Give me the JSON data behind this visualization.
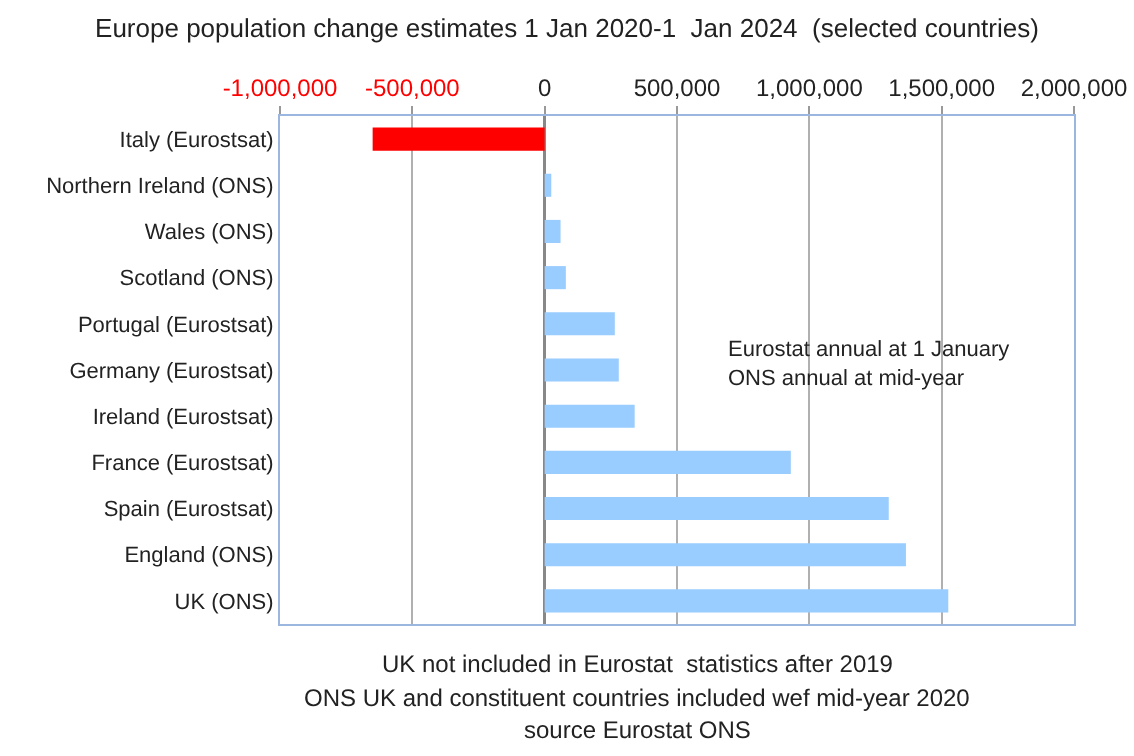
{
  "chart_data": {
    "type": "bar",
    "orientation": "horizontal",
    "title": "Europe population change estimates 1 Jan 2020-1  Jan 2024  (selected countries)",
    "categories": [
      "Italy (Eurostsat)",
      "Northern Ireland (ONS)",
      "Wales (ONS)",
      "Scotland (ONS)",
      "Portugal (Eurostsat)",
      "Germany (Eurostsat)",
      "Ireland (Eurostsat)",
      "France (Eurostsat)",
      "Spain (Eurostsat)",
      "England (ONS)",
      "UK (ONS)"
    ],
    "values": [
      -650000,
      25000,
      60000,
      80000,
      265000,
      280000,
      340000,
      930000,
      1300000,
      1365000,
      1525000
    ],
    "colors": [
      "#ff0000",
      "#99ccff",
      "#99ccff",
      "#99ccff",
      "#99ccff",
      "#99ccff",
      "#99ccff",
      "#99ccff",
      "#99ccff",
      "#99ccff",
      "#99ccff"
    ],
    "xlim": [
      -1000000,
      2000000
    ],
    "xticks": [
      {
        "value": -1000000,
        "label": "-1,000,000"
      },
      {
        "value": -500000,
        "label": "-500,000"
      },
      0,
      {
        "value": 500000,
        "label": "500,000"
      },
      {
        "value": 1000000,
        "label": "1,000,000"
      },
      {
        "value": 1500000,
        "label": "1,500,000"
      },
      {
        "value": 2000000,
        "label": "2,000,000"
      }
    ],
    "grid": "x",
    "annotations": [
      "Eurostat annual at 1 January\nONS annual at mid-year",
      "UK not included in Eurostat  statistics after 2019",
      "ONS UK and constituent countries included wef mid-year 2020",
      "source Eurostat ONS"
    ]
  }
}
